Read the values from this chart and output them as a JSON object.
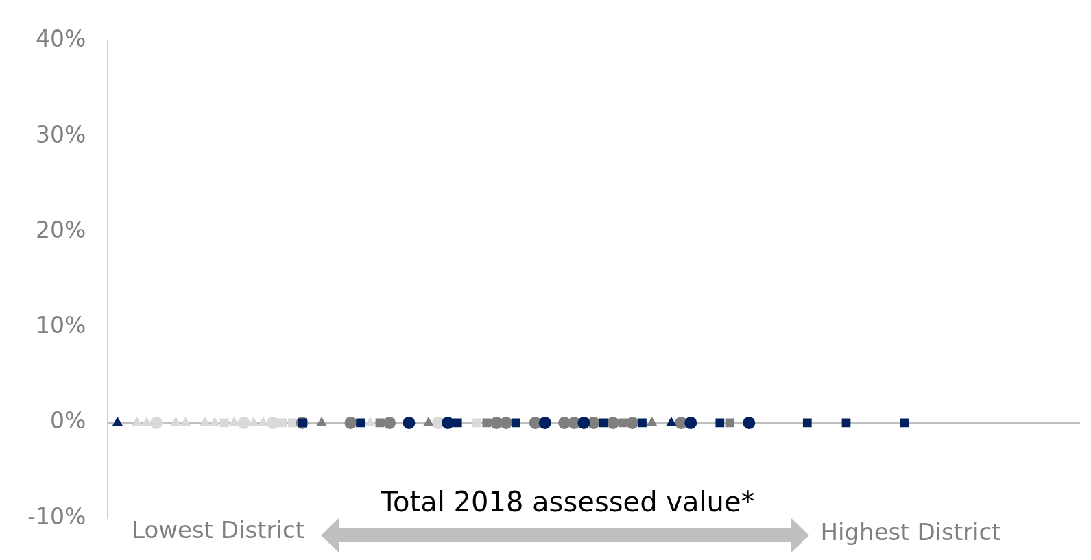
{
  "chart_data": {
    "type": "scatter",
    "ylim": [
      -10,
      40
    ],
    "yticks": [
      {
        "value": -10,
        "label": "-10%"
      },
      {
        "value": 0,
        "label": "0%"
      },
      {
        "value": 10,
        "label": "10%"
      },
      {
        "value": 20,
        "label": "20%"
      },
      {
        "value": 30,
        "label": "30%"
      },
      {
        "value": 40,
        "label": "40%"
      }
    ],
    "tick_labels": "y",
    "annotations": [
      "Total 2018 assessed value*",
      "Lowest District",
      "Highest District"
    ],
    "categories": [
      null,
      null,
      null,
      null,
      null,
      null,
      null,
      null,
      null,
      null,
      null,
      null,
      null,
      null,
      null,
      null,
      null,
      null,
      null,
      null,
      null,
      null,
      null,
      null,
      null,
      null,
      null,
      null,
      null,
      null,
      null,
      null,
      null,
      null,
      null,
      null,
      null,
      null,
      null,
      null,
      null,
      null,
      null,
      null,
      null,
      null,
      null,
      null,
      null,
      null,
      null,
      null,
      null,
      null,
      null,
      null,
      null,
      null,
      null,
      null,
      null,
      null,
      null,
      null,
      null,
      null,
      null,
      null,
      null,
      null,
      null,
      null,
      null,
      null,
      null,
      null,
      null,
      null,
      null,
      null,
      null,
      null,
      null,
      null,
      null,
      null,
      null,
      null,
      null,
      null,
      null,
      null,
      null,
      null,
      null,
      null,
      null,
      null,
      null,
      null,
      null
    ],
    "series": [
      {
        "color": "#002060",
        "marker": "triangle",
        "values": [
          null,
          0,
          null,
          null,
          null,
          null,
          null,
          null,
          null,
          null,
          null,
          null,
          null,
          null,
          null,
          null,
          null,
          null,
          null,
          null,
          null,
          null,
          null,
          null,
          null,
          null,
          null,
          null,
          null,
          null,
          null,
          null,
          null,
          null,
          null,
          null,
          null,
          null,
          null,
          null,
          null,
          null,
          null,
          null,
          null,
          null,
          null,
          null,
          null,
          null,
          null,
          null,
          null,
          null,
          null,
          null,
          null,
          null,
          0,
          null,
          null,
          null,
          null,
          null,
          null,
          null,
          null,
          null,
          null,
          null,
          null,
          null,
          null,
          null,
          null,
          null,
          null,
          null,
          null,
          null,
          null,
          null,
          null,
          null,
          null,
          null,
          null,
          null,
          null,
          null,
          null,
          null,
          null,
          null,
          null,
          null,
          null,
          null,
          null,
          null,
          null
        ]
      },
      {
        "color": "#002060",
        "marker": "circle",
        "values": [
          null,
          null,
          null,
          null,
          null,
          null,
          null,
          null,
          null,
          null,
          null,
          null,
          null,
          null,
          null,
          null,
          null,
          null,
          null,
          null,
          null,
          null,
          null,
          null,
          null,
          null,
          null,
          null,
          null,
          null,
          null,
          0,
          null,
          null,
          null,
          0,
          null,
          null,
          null,
          null,
          null,
          null,
          null,
          null,
          null,
          0,
          null,
          null,
          null,
          0,
          null,
          null,
          null,
          null,
          null,
          null,
          null,
          null,
          null,
          null,
          0,
          null,
          null,
          null,
          null,
          null,
          0,
          null,
          null,
          null,
          null,
          null,
          null,
          null,
          null,
          null,
          null,
          null,
          null,
          null,
          null,
          null,
          null,
          null,
          null,
          null,
          null,
          null,
          null,
          null,
          null,
          null,
          null,
          null,
          null,
          null,
          null,
          null,
          null,
          null,
          null
        ]
      },
      {
        "color": "#002060",
        "marker": "square",
        "values": [
          null,
          null,
          null,
          null,
          null,
          null,
          null,
          null,
          null,
          null,
          null,
          null,
          null,
          null,
          null,
          null,
          null,
          null,
          null,
          null,
          0,
          null,
          null,
          null,
          null,
          null,
          0,
          null,
          null,
          null,
          null,
          null,
          null,
          null,
          null,
          null,
          0,
          null,
          null,
          null,
          null,
          null,
          0,
          null,
          null,
          null,
          null,
          null,
          null,
          null,
          null,
          0,
          null,
          null,
          null,
          0,
          null,
          null,
          null,
          null,
          null,
          null,
          null,
          0,
          null,
          null,
          null,
          null,
          null,
          null,
          null,
          null,
          0,
          null,
          null,
          null,
          0,
          null,
          null,
          null,
          null,
          null,
          0,
          null,
          null,
          null,
          null,
          null,
          null,
          null,
          null,
          null,
          null,
          null,
          null,
          null,
          null,
          null,
          null,
          null,
          null
        ]
      },
      {
        "color": "#7f7f7f",
        "marker": "triangle",
        "values": [
          null,
          null,
          null,
          null,
          null,
          null,
          null,
          null,
          null,
          null,
          null,
          null,
          null,
          null,
          null,
          null,
          null,
          null,
          null,
          null,
          null,
          null,
          0,
          null,
          null,
          null,
          null,
          null,
          null,
          null,
          null,
          null,
          null,
          0,
          null,
          null,
          null,
          null,
          null,
          null,
          null,
          null,
          null,
          null,
          null,
          null,
          null,
          null,
          null,
          null,
          null,
          null,
          null,
          null,
          null,
          null,
          0,
          null,
          null,
          null,
          null,
          null,
          null,
          null,
          null,
          null,
          null,
          null,
          null,
          null,
          null,
          null,
          null,
          null,
          null,
          null,
          null,
          null,
          null,
          null,
          null,
          null,
          null,
          null,
          null,
          null,
          null,
          null,
          null,
          null,
          null,
          null,
          null,
          null,
          null,
          null,
          null,
          null,
          null,
          null,
          null
        ]
      },
      {
        "color": "#7f7f7f",
        "marker": "circle",
        "values": [
          null,
          null,
          null,
          null,
          null,
          null,
          null,
          null,
          null,
          null,
          null,
          null,
          null,
          null,
          null,
          null,
          null,
          null,
          null,
          null,
          0,
          null,
          null,
          null,
          null,
          0,
          null,
          null,
          null,
          0,
          null,
          null,
          null,
          null,
          null,
          null,
          null,
          null,
          null,
          null,
          0,
          0,
          null,
          null,
          0,
          null,
          null,
          0,
          0,
          null,
          0,
          null,
          0,
          null,
          0,
          null,
          null,
          null,
          null,
          0,
          null,
          null,
          null,
          null,
          null,
          null,
          null,
          null,
          null,
          null,
          null,
          null,
          null,
          null,
          null,
          null,
          null,
          null,
          null,
          null,
          null,
          null,
          null,
          null,
          null,
          null,
          null,
          null,
          null,
          null,
          null,
          null,
          null,
          null,
          null,
          null,
          null,
          null,
          null,
          null,
          null
        ]
      },
      {
        "color": "#7f7f7f",
        "marker": "square",
        "values": [
          null,
          null,
          null,
          null,
          null,
          null,
          null,
          null,
          null,
          null,
          null,
          null,
          null,
          null,
          null,
          null,
          null,
          null,
          null,
          null,
          null,
          null,
          null,
          null,
          null,
          null,
          null,
          null,
          0,
          null,
          null,
          null,
          null,
          null,
          null,
          null,
          null,
          null,
          null,
          0,
          null,
          null,
          null,
          null,
          null,
          null,
          null,
          null,
          null,
          null,
          null,
          null,
          null,
          0,
          null,
          null,
          null,
          null,
          null,
          null,
          null,
          null,
          null,
          null,
          0,
          null,
          null,
          null,
          null,
          null,
          null,
          null,
          null,
          null,
          null,
          null,
          null,
          null,
          null,
          null,
          null,
          null,
          null,
          null,
          null,
          null,
          null,
          null,
          null,
          null,
          null,
          null,
          null,
          null,
          null,
          null,
          null,
          null,
          null,
          null,
          null
        ]
      },
      {
        "color": "#d9d9d9",
        "marker": "triangle",
        "values": [
          null,
          null,
          null,
          0,
          0,
          null,
          null,
          0,
          0,
          null,
          0,
          0,
          null,
          0,
          null,
          0,
          0,
          null,
          null,
          null,
          null,
          null,
          null,
          null,
          null,
          null,
          null,
          0,
          null,
          null,
          null,
          null,
          null,
          null,
          null,
          null,
          null,
          null,
          null,
          null,
          null,
          null,
          null,
          null,
          null,
          null,
          null,
          null,
          null,
          null,
          null,
          null,
          null,
          null,
          null,
          null,
          null,
          null,
          null,
          null,
          null,
          null,
          null,
          null,
          null,
          null,
          null,
          null,
          null,
          null,
          null,
          null,
          null,
          null,
          null,
          null,
          null,
          null,
          null,
          null,
          null,
          null,
          null,
          null,
          null,
          null,
          null,
          null,
          null,
          null,
          null,
          null,
          null,
          null,
          null,
          null,
          null,
          null,
          null,
          null,
          null
        ]
      },
      {
        "color": "#d9d9d9",
        "marker": "circle",
        "values": [
          null,
          null,
          null,
          null,
          null,
          0,
          null,
          null,
          null,
          null,
          null,
          null,
          null,
          null,
          0,
          null,
          null,
          0,
          null,
          null,
          null,
          null,
          null,
          null,
          null,
          null,
          null,
          null,
          null,
          null,
          null,
          null,
          null,
          null,
          0,
          null,
          null,
          null,
          null,
          null,
          null,
          null,
          null,
          null,
          null,
          null,
          null,
          null,
          null,
          null,
          null,
          null,
          null,
          null,
          null,
          null,
          null,
          null,
          null,
          null,
          null,
          null,
          null,
          null,
          null,
          null,
          null,
          null,
          null,
          null,
          null,
          null,
          null,
          null,
          null,
          null,
          null,
          null,
          null,
          null,
          null,
          null,
          null,
          null,
          null,
          null,
          null,
          null,
          null,
          null,
          null,
          null,
          null,
          null,
          null,
          null,
          null,
          null,
          null,
          null,
          null
        ]
      },
      {
        "color": "#d9d9d9",
        "marker": "square",
        "values": [
          null,
          null,
          null,
          null,
          null,
          null,
          null,
          null,
          null,
          null,
          null,
          null,
          0,
          null,
          null,
          null,
          null,
          null,
          0,
          0,
          null,
          null,
          null,
          null,
          null,
          null,
          null,
          null,
          null,
          null,
          null,
          null,
          null,
          null,
          null,
          null,
          null,
          null,
          0,
          null,
          null,
          null,
          null,
          null,
          null,
          null,
          null,
          null,
          null,
          null,
          null,
          null,
          null,
          null,
          null,
          null,
          null,
          null,
          null,
          null,
          null,
          null,
          null,
          null,
          null,
          null,
          null,
          null,
          null,
          null,
          null,
          null,
          null,
          null,
          null,
          null,
          null,
          null,
          null,
          null,
          null,
          null,
          null,
          null,
          null,
          null,
          null,
          null,
          null,
          null,
          null,
          null,
          null,
          null,
          null,
          null,
          null,
          null,
          null,
          null,
          null
        ]
      }
    ]
  }
}
